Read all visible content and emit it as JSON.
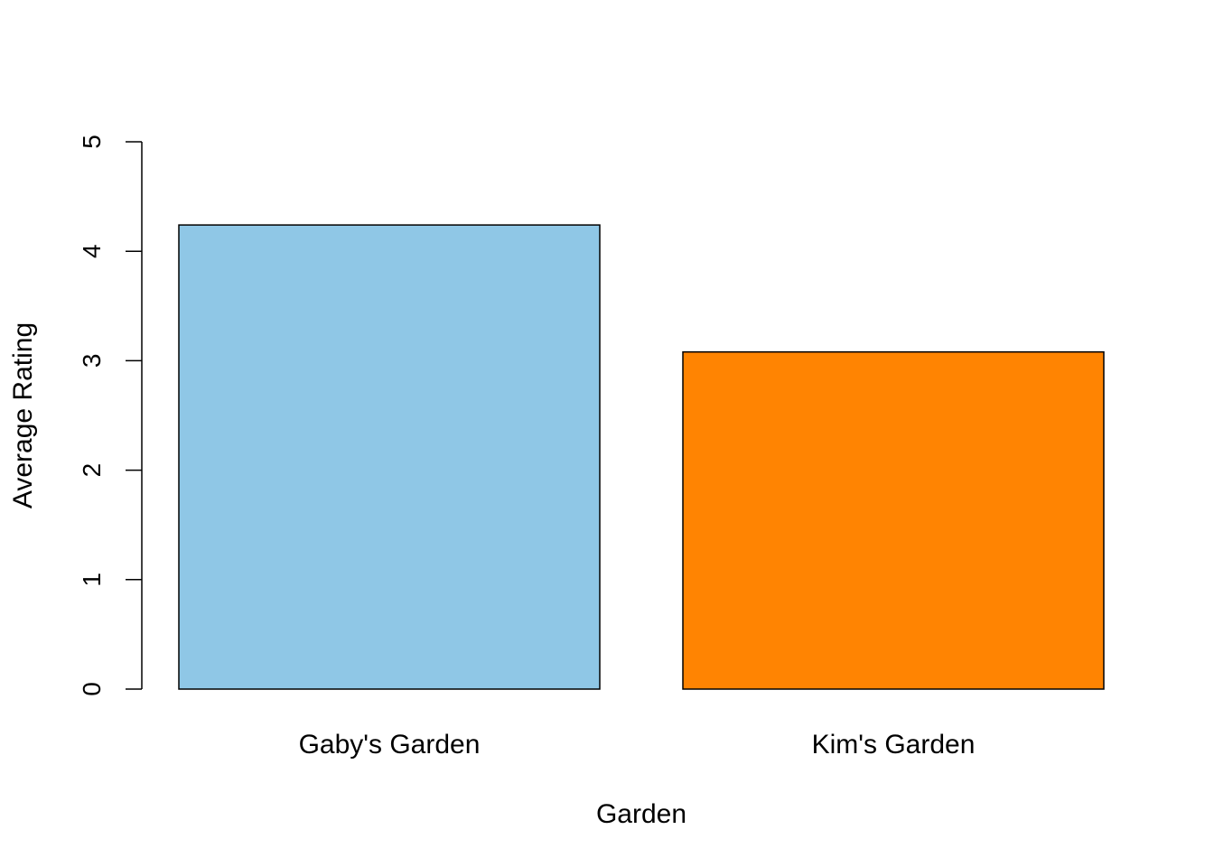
{
  "chart_data": {
    "type": "bar",
    "categories": [
      "Gaby's Garden",
      "Kim's Garden"
    ],
    "values": [
      4.24,
      3.08
    ],
    "colors": [
      "#8FC7E6",
      "#FF8402"
    ],
    "title": "",
    "xlabel": "Garden",
    "ylabel": "Average Rating",
    "ylim": [
      0,
      5
    ],
    "yticks": [
      "0",
      "1",
      "2",
      "3",
      "4",
      "5"
    ],
    "grid": false,
    "legend": "none"
  }
}
